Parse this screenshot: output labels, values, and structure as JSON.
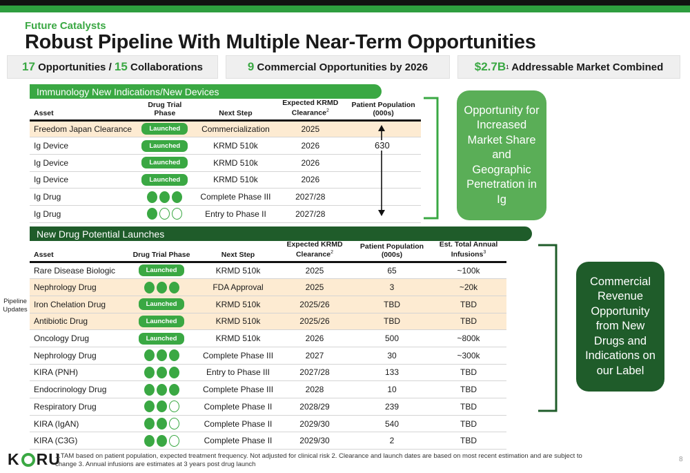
{
  "header": {
    "kicker": "Future Catalysts",
    "title": "Robust Pipeline With Multiple Near-Term Opportunities"
  },
  "stats": [
    {
      "num1": "17",
      "text1": " Opportunities / ",
      "num2": "15",
      "text2": " Collaborations"
    },
    {
      "num1": "9",
      "text1": " Commercial Opportunities by 2026"
    },
    {
      "num1": "$2.7B",
      "sup": "1",
      "text1": " Addressable Market Combined"
    }
  ],
  "section1": {
    "title": "Immunology New Indications/New Devices",
    "headers": {
      "asset": "Asset",
      "phase": "Drug Trial Phase",
      "next": "Next Step",
      "clearance": "Expected KRMD Clearance",
      "clearance_sup": "2",
      "population": "Patient Population (000s)"
    },
    "population_span": "630",
    "rows": [
      {
        "asset": "Freedom Japan Clearance",
        "phase": "Launched",
        "next": "Commercialization",
        "clearance": "2025",
        "hl": true
      },
      {
        "asset": "Ig Device",
        "phase": "Launched",
        "next": "KRMD 510k",
        "clearance": "2026"
      },
      {
        "asset": "Ig Device",
        "phase": "Launched",
        "next": "KRMD 510k",
        "clearance": "2026"
      },
      {
        "asset": "Ig Device",
        "phase": "Launched",
        "next": "KRMD 510k",
        "clearance": "2026"
      },
      {
        "asset": "Ig Drug",
        "phase": "dots",
        "filled": 3,
        "next": "Complete Phase III",
        "clearance": "2027/28"
      },
      {
        "asset": "Ig Drug",
        "phase": "dots",
        "filled": 1,
        "next": "Entry to Phase II",
        "clearance": "2027/28"
      }
    ]
  },
  "section2": {
    "title": "New Drug Potential Launches",
    "headers": {
      "asset": "Asset",
      "phase": "Drug Trial Phase",
      "next": "Next Step",
      "clearance": "Expected KRMD Clearance",
      "clearance_sup": "2",
      "population": "Patient Population (000s)",
      "infusions": "Est. Total Annual Infusions",
      "infusions_sup": "3"
    },
    "rows": [
      {
        "asset": "Rare Disease Biologic",
        "phase": "Launched",
        "next": "KRMD 510k",
        "clearance": "2025",
        "population": "65",
        "infusions": "~100k"
      },
      {
        "asset": "Nephrology Drug",
        "phase": "dots",
        "filled": 3,
        "next": "FDA Approval",
        "clearance": "2025",
        "population": "3",
        "infusions": "~20k",
        "hl": true
      },
      {
        "asset": "Iron Chelation Drug",
        "phase": "Launched",
        "next": "KRMD 510k",
        "clearance": "2025/26",
        "population": "TBD",
        "infusions": "TBD",
        "hl": true
      },
      {
        "asset": "Antibiotic Drug",
        "phase": "Launched",
        "next": "KRMD 510k",
        "clearance": "2025/26",
        "population": "TBD",
        "infusions": "TBD",
        "hl": true
      },
      {
        "asset": "Oncology Drug",
        "phase": "Launched",
        "next": "KRMD 510k",
        "clearance": "2026",
        "population": "500",
        "infusions": "~800k"
      },
      {
        "asset": "Nephrology Drug",
        "phase": "dots",
        "filled": 3,
        "next": "Complete Phase III",
        "clearance": "2027",
        "population": "30",
        "infusions": "~300k"
      },
      {
        "asset": "KIRA (PNH)",
        "phase": "dots",
        "filled": 3,
        "next": "Entry to Phase III",
        "clearance": "2027/28",
        "population": "133",
        "infusions": "TBD"
      },
      {
        "asset": "Endocrinology Drug",
        "phase": "dots",
        "filled": 3,
        "next": "Complete Phase III",
        "clearance": "2028",
        "population": "10",
        "infusions": "TBD"
      },
      {
        "asset": "Respiratory Drug",
        "phase": "dots",
        "filled": 2,
        "next": "Complete Phase II",
        "clearance": "2028/29",
        "population": "239",
        "infusions": "TBD"
      },
      {
        "asset": "KIRA (IgAN)",
        "phase": "dots",
        "filled": 2,
        "next": "Complete Phase II",
        "clearance": "2029/30",
        "population": "540",
        "infusions": "TBD"
      },
      {
        "asset": "KIRA (C3G)",
        "phase": "dots",
        "filled": 2,
        "next": "Complete Phase II",
        "clearance": "2029/30",
        "population": "2",
        "infusions": "TBD"
      }
    ]
  },
  "side_note": "Pipeline Updates",
  "callouts": {
    "first": "Opportunity for Increased Market Share and Geographic Penetration in Ig",
    "second": "Commercial Revenue Opportunity from New Drugs and Indications on our Label"
  },
  "footer": {
    "logo": "KORU",
    "footnote": "1.TAM based on patient population, expected treatment frequency. Not adjusted for clinical risk  2. Clearance and launch dates are based on most recent estimation and are subject to change 3. Annual infusions are estimates at 3 years post drug launch",
    "page": "8"
  },
  "colors": {
    "accent": "#3aa843",
    "dark_green": "#1f5c2a",
    "highlight": "#fdebd2"
  }
}
